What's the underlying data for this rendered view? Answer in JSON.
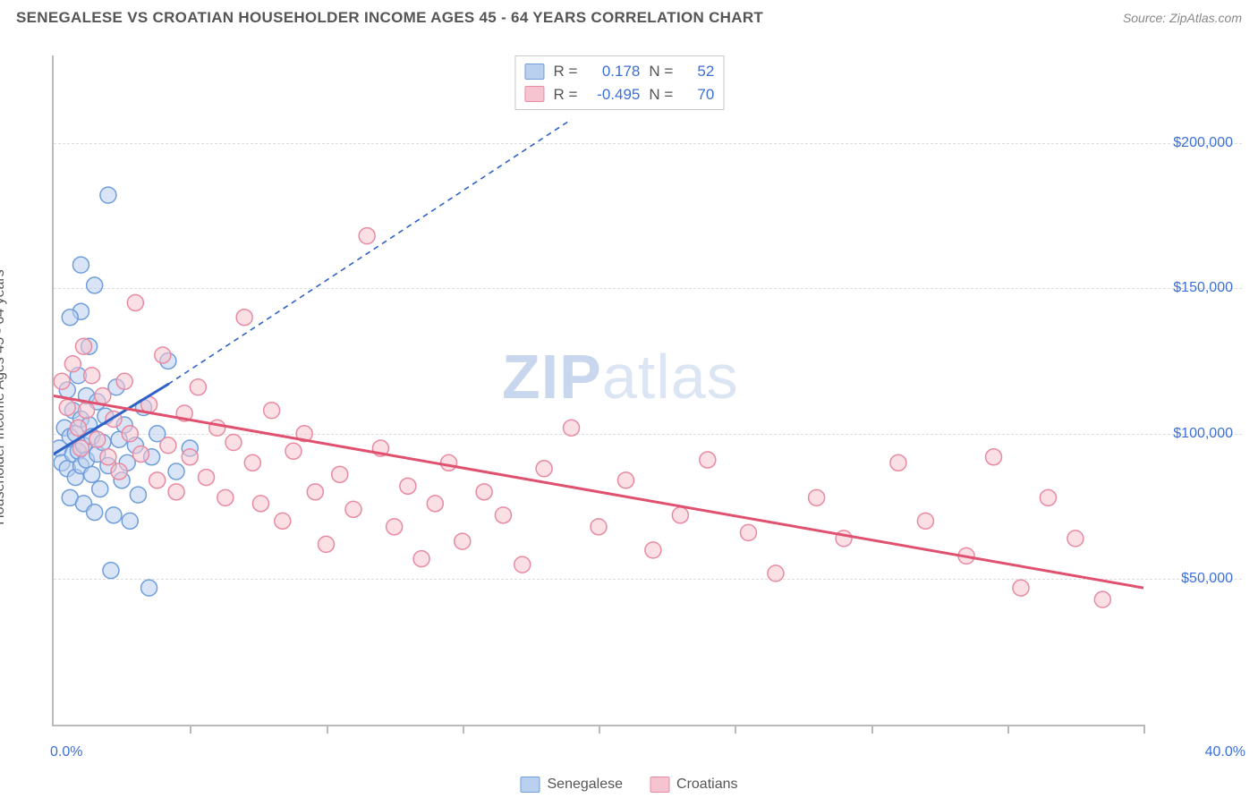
{
  "header": {
    "title": "SENEGALESE VS CROATIAN HOUSEHOLDER INCOME AGES 45 - 64 YEARS CORRELATION CHART",
    "source_label": "Source: ",
    "source_name": "ZipAtlas.com"
  },
  "watermark": {
    "part1": "ZIP",
    "part2": "atlas"
  },
  "chart": {
    "type": "scatter",
    "background_color": "#ffffff",
    "grid_color": "#dcdcdc",
    "axis_color": "#b9b9b9",
    "tick_label_color": "#3b6fd6",
    "y_axis_label": "Householder Income Ages 45 - 64 years",
    "xlim": [
      0,
      40
    ],
    "ylim": [
      0,
      230000
    ],
    "x_min_label": "0.0%",
    "x_max_label": "40.0%",
    "x_tick_positions": [
      0,
      5,
      10,
      15,
      20,
      25,
      30,
      35,
      40
    ],
    "y_gridlines": [
      {
        "value": 50000,
        "label": "$50,000"
      },
      {
        "value": 100000,
        "label": "$100,000"
      },
      {
        "value": 150000,
        "label": "$150,000"
      },
      {
        "value": 200000,
        "label": "$200,000"
      }
    ],
    "marker_radius": 9,
    "marker_stroke_width": 1.5,
    "series": [
      {
        "id": "senegalese",
        "label": "Senegalese",
        "fill": "#b9d0ef",
        "stroke": "#6f9edc",
        "fill_opacity": 0.55,
        "trend": {
          "solid": {
            "x1": 0,
            "y1": 93000,
            "x2": 4.2,
            "y2": 117000,
            "color": "#2f62c7",
            "width": 3
          },
          "dashed": {
            "x1": 4.2,
            "y1": 117000,
            "x2": 19,
            "y2": 208000,
            "color": "#2f62c7",
            "width": 1.6,
            "dash": "6 5"
          }
        },
        "points": [
          [
            0.2,
            95000
          ],
          [
            0.3,
            90000
          ],
          [
            0.4,
            102000
          ],
          [
            0.5,
            88000
          ],
          [
            0.5,
            115000
          ],
          [
            0.6,
            99000
          ],
          [
            0.6,
            78000
          ],
          [
            0.7,
            108000
          ],
          [
            0.7,
            93000
          ],
          [
            0.8,
            100000
          ],
          [
            0.8,
            85000
          ],
          [
            0.9,
            120000
          ],
          [
            0.9,
            94000
          ],
          [
            1.0,
            105000
          ],
          [
            1.0,
            89000
          ],
          [
            1.0,
            142000
          ],
          [
            1.1,
            96000
          ],
          [
            1.1,
            76000
          ],
          [
            1.2,
            113000
          ],
          [
            1.2,
            91000
          ],
          [
            1.3,
            103000
          ],
          [
            1.4,
            86000
          ],
          [
            1.4,
            99000
          ],
          [
            1.5,
            73000
          ],
          [
            1.5,
            151000
          ],
          [
            1.6,
            93000
          ],
          [
            1.6,
            111000
          ],
          [
            1.7,
            81000
          ],
          [
            1.8,
            97000
          ],
          [
            1.9,
            106000
          ],
          [
            2.0,
            89000
          ],
          [
            2.0,
            182000
          ],
          [
            2.1,
            53000
          ],
          [
            2.2,
            72000
          ],
          [
            2.3,
            116000
          ],
          [
            2.4,
            98000
          ],
          [
            2.5,
            84000
          ],
          [
            2.6,
            103000
          ],
          [
            2.7,
            90000
          ],
          [
            2.8,
            70000
          ],
          [
            3.0,
            96000
          ],
          [
            3.1,
            79000
          ],
          [
            3.3,
            109000
          ],
          [
            3.5,
            47000
          ],
          [
            3.6,
            92000
          ],
          [
            3.8,
            100000
          ],
          [
            4.2,
            125000
          ],
          [
            4.5,
            87000
          ],
          [
            5.0,
            95000
          ],
          [
            1.0,
            158000
          ],
          [
            0.6,
            140000
          ],
          [
            1.3,
            130000
          ]
        ]
      },
      {
        "id": "croatians",
        "label": "Croatians",
        "fill": "#f6c4d0",
        "stroke": "#e88aa2",
        "fill_opacity": 0.55,
        "trend": {
          "solid": {
            "x1": 0,
            "y1": 113000,
            "x2": 40,
            "y2": 47000,
            "color": "#e0506f",
            "width": 3
          }
        },
        "points": [
          [
            0.3,
            118000
          ],
          [
            0.5,
            109000
          ],
          [
            0.7,
            124000
          ],
          [
            0.9,
            102000
          ],
          [
            1.0,
            95000
          ],
          [
            1.1,
            130000
          ],
          [
            1.2,
            108000
          ],
          [
            1.4,
            120000
          ],
          [
            1.6,
            98000
          ],
          [
            1.8,
            113000
          ],
          [
            2.0,
            92000
          ],
          [
            2.2,
            105000
          ],
          [
            2.4,
            87000
          ],
          [
            2.6,
            118000
          ],
          [
            2.8,
            100000
          ],
          [
            3.0,
            145000
          ],
          [
            3.2,
            93000
          ],
          [
            3.5,
            110000
          ],
          [
            3.8,
            84000
          ],
          [
            4.0,
            127000
          ],
          [
            4.2,
            96000
          ],
          [
            4.5,
            80000
          ],
          [
            4.8,
            107000
          ],
          [
            5.0,
            92000
          ],
          [
            5.3,
            116000
          ],
          [
            5.6,
            85000
          ],
          [
            6.0,
            102000
          ],
          [
            6.3,
            78000
          ],
          [
            6.6,
            97000
          ],
          [
            7.0,
            140000
          ],
          [
            7.3,
            90000
          ],
          [
            7.6,
            76000
          ],
          [
            8.0,
            108000
          ],
          [
            8.4,
            70000
          ],
          [
            8.8,
            94000
          ],
          [
            9.2,
            100000
          ],
          [
            9.6,
            80000
          ],
          [
            10.0,
            62000
          ],
          [
            10.5,
            86000
          ],
          [
            11.0,
            74000
          ],
          [
            11.5,
            168000
          ],
          [
            12.0,
            95000
          ],
          [
            12.5,
            68000
          ],
          [
            13.0,
            82000
          ],
          [
            13.5,
            57000
          ],
          [
            14.0,
            76000
          ],
          [
            14.5,
            90000
          ],
          [
            15.0,
            63000
          ],
          [
            15.8,
            80000
          ],
          [
            16.5,
            72000
          ],
          [
            17.2,
            55000
          ],
          [
            18.0,
            88000
          ],
          [
            19.0,
            102000
          ],
          [
            20.0,
            68000
          ],
          [
            21.0,
            84000
          ],
          [
            22.0,
            60000
          ],
          [
            23.0,
            72000
          ],
          [
            24.0,
            91000
          ],
          [
            25.5,
            66000
          ],
          [
            26.5,
            52000
          ],
          [
            28.0,
            78000
          ],
          [
            29.0,
            64000
          ],
          [
            31.0,
            90000
          ],
          [
            32.0,
            70000
          ],
          [
            33.5,
            58000
          ],
          [
            34.5,
            92000
          ],
          [
            35.5,
            47000
          ],
          [
            36.5,
            78000
          ],
          [
            37.5,
            64000
          ],
          [
            38.5,
            43000
          ]
        ]
      }
    ]
  },
  "stats_box": {
    "rows": [
      {
        "series_id": "senegalese",
        "r_label": "R =",
        "r_value": "0.178",
        "n_label": "N =",
        "n_value": "52"
      },
      {
        "series_id": "croatians",
        "r_label": "R =",
        "r_value": "-0.495",
        "n_label": "N =",
        "n_value": "70"
      }
    ]
  },
  "legend_bottom": [
    {
      "series_id": "senegalese",
      "label": "Senegalese"
    },
    {
      "series_id": "croatians",
      "label": "Croatians"
    }
  ]
}
